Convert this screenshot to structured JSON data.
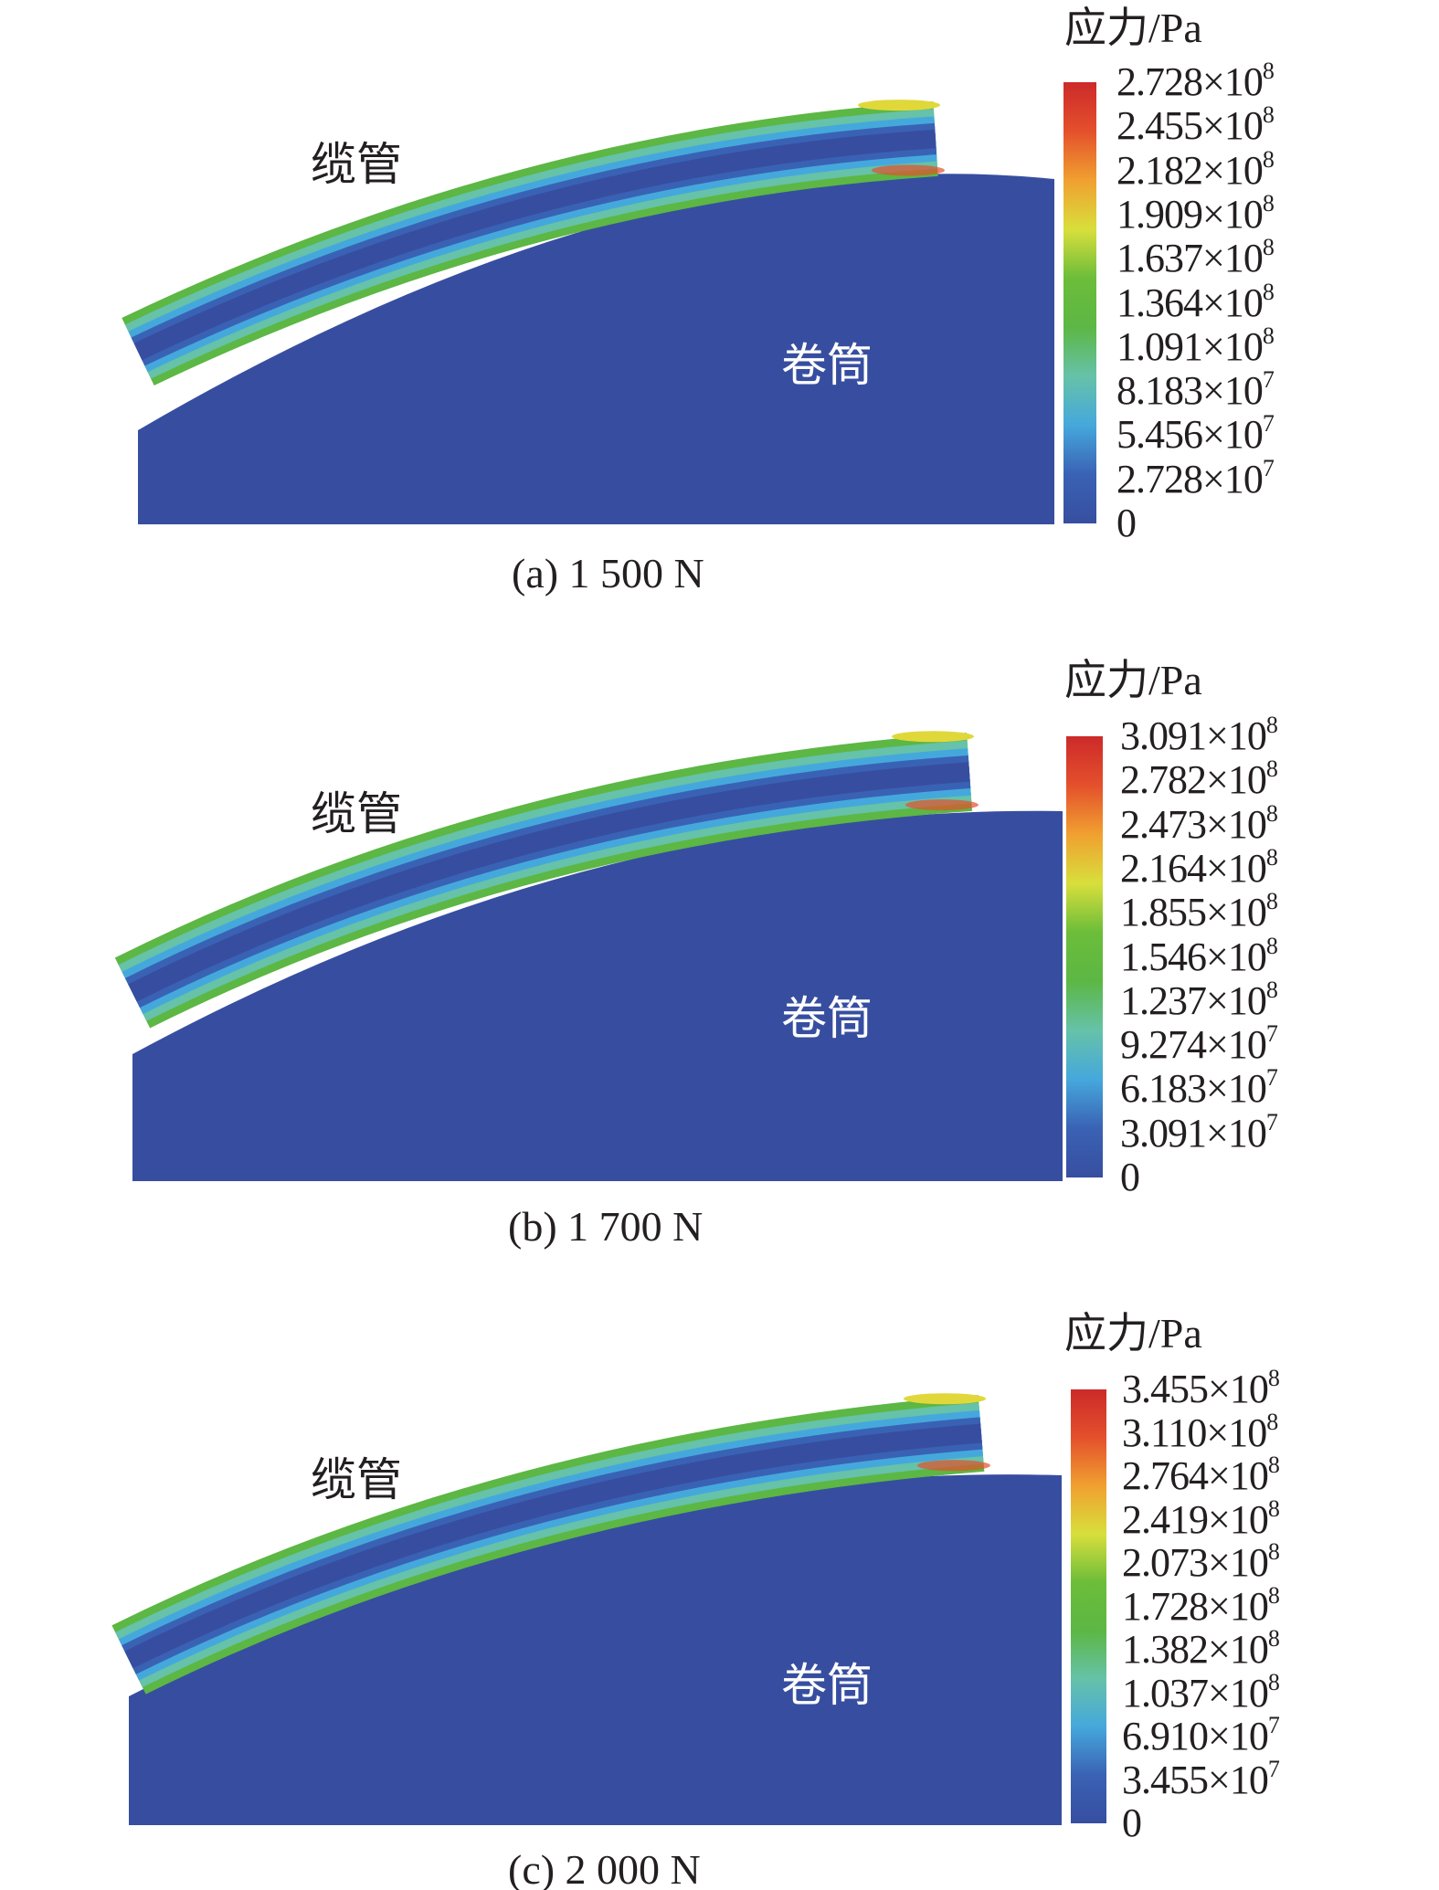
{
  "panels": [
    {
      "id": "a",
      "caption": "(a) 1 500 N",
      "cable_label": "缆管",
      "drum_label": "卷筒",
      "legend_title": "应力/Pa",
      "legend_ticks": [
        {
          "m": "2.728",
          "e": "8"
        },
        {
          "m": "2.455",
          "e": "8"
        },
        {
          "m": "2.182",
          "e": "8"
        },
        {
          "m": "1.909",
          "e": "8"
        },
        {
          "m": "1.637",
          "e": "8"
        },
        {
          "m": "1.364",
          "e": "8"
        },
        {
          "m": "1.091",
          "e": "8"
        },
        {
          "m": "8.183",
          "e": "7"
        },
        {
          "m": "5.456",
          "e": "7"
        },
        {
          "m": "2.728",
          "e": "7"
        },
        {
          "m": "0",
          "e": ""
        }
      ]
    },
    {
      "id": "b",
      "caption": "(b) 1 700 N",
      "cable_label": "缆管",
      "drum_label": "卷筒",
      "legend_title": "应力/Pa",
      "legend_ticks": [
        {
          "m": "3.091",
          "e": "8"
        },
        {
          "m": "2.782",
          "e": "8"
        },
        {
          "m": "2.473",
          "e": "8"
        },
        {
          "m": "2.164",
          "e": "8"
        },
        {
          "m": "1.855",
          "e": "8"
        },
        {
          "m": "1.546",
          "e": "8"
        },
        {
          "m": "1.237",
          "e": "8"
        },
        {
          "m": "9.274",
          "e": "7"
        },
        {
          "m": "6.183",
          "e": "7"
        },
        {
          "m": "3.091",
          "e": "7"
        },
        {
          "m": "0",
          "e": ""
        }
      ]
    },
    {
      "id": "c",
      "caption": "(c) 2 000 N",
      "cable_label": "缆管",
      "drum_label": "卷筒",
      "legend_title": "应力/Pa",
      "legend_ticks": [
        {
          "m": "3.455",
          "e": "8"
        },
        {
          "m": "3.110",
          "e": "8"
        },
        {
          "m": "2.764",
          "e": "8"
        },
        {
          "m": "2.419",
          "e": "8"
        },
        {
          "m": "2.073",
          "e": "8"
        },
        {
          "m": "1.728",
          "e": "8"
        },
        {
          "m": "1.382",
          "e": "8"
        },
        {
          "m": "1.037",
          "e": "8"
        },
        {
          "m": "6.910",
          "e": "7"
        },
        {
          "m": "3.455",
          "e": "7"
        },
        {
          "m": "0",
          "e": ""
        }
      ]
    }
  ],
  "colors": {
    "drum": "#374ea0",
    "scale": [
      "#374ea0",
      "#3a62b4",
      "#45a8dc",
      "#66c2a8",
      "#5cb744",
      "#6cbd3a",
      "#d8df3c",
      "#f0a030",
      "#e4502c",
      "#cc2a2a"
    ]
  }
}
